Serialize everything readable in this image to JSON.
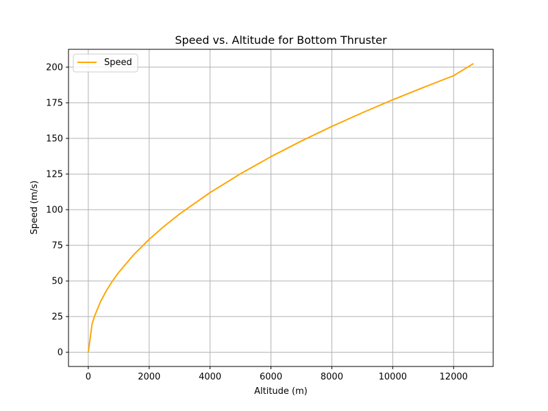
{
  "chart_data": {
    "type": "line",
    "title": "Speed vs. Altitude for Bottom Thruster",
    "xlabel": "Altitude (m)",
    "ylabel": "Speed (m/s)",
    "xlim": [
      -650,
      13300
    ],
    "ylim": [
      -10,
      212.5
    ],
    "xticks": [
      0,
      2000,
      4000,
      6000,
      8000,
      10000,
      12000
    ],
    "yticks": [
      0,
      25,
      50,
      75,
      100,
      125,
      150,
      175,
      200
    ],
    "grid": true,
    "legend_position": "top-left",
    "series": [
      {
        "name": "Speed",
        "color": "#ffa500",
        "x": [
          0,
          125,
          200,
          400,
          600,
          800,
          1000,
          1500,
          2000,
          2500,
          3000,
          4000,
          5000,
          6000,
          7000,
          8000,
          9000,
          10000,
          11000,
          12000,
          12650
        ],
        "y": [
          0,
          19.8,
          25.0,
          35.4,
          43.4,
          50.1,
          56.0,
          68.6,
          79.2,
          88.5,
          97.0,
          112.0,
          125.2,
          137.2,
          148.2,
          158.4,
          168.0,
          177.1,
          185.7,
          194.0,
          202.5
        ]
      }
    ]
  }
}
